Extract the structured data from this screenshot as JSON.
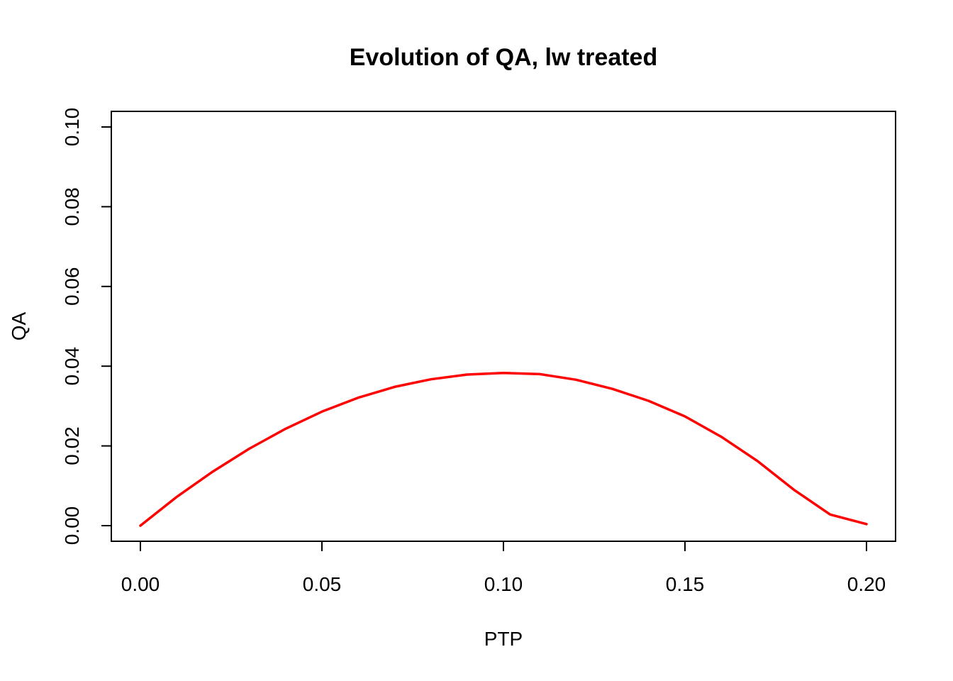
{
  "chart_data": {
    "type": "line",
    "title": "Evolution of QA, lw treated",
    "xlabel": "PTP",
    "ylabel": "QA",
    "xlim": [
      0,
      0.2
    ],
    "ylim": [
      0,
      0.1
    ],
    "x_ticks": [
      "0.00",
      "0.05",
      "0.10",
      "0.15",
      "0.20"
    ],
    "x_tick_values": [
      0,
      0.05,
      0.1,
      0.15,
      0.2
    ],
    "y_ticks": [
      "0.00",
      "0.02",
      "0.04",
      "0.06",
      "0.08",
      "0.10"
    ],
    "y_tick_values": [
      0,
      0.02,
      0.04,
      0.06,
      0.08,
      0.1
    ],
    "grid": false,
    "legend": "none",
    "series": [
      {
        "color": "#ff0000",
        "x": [
          0,
          0.01,
          0.02,
          0.03,
          0.04,
          0.05,
          0.06,
          0.07,
          0.08,
          0.09,
          0.1,
          0.11,
          0.12,
          0.13,
          0.14,
          0.15,
          0.16,
          0.17,
          0.18,
          0.19,
          0.2
        ],
        "y": [
          0.0,
          0.0072,
          0.0136,
          0.0193,
          0.0243,
          0.0286,
          0.0321,
          0.0348,
          0.0367,
          0.0379,
          0.0383,
          0.038,
          0.0366,
          0.0343,
          0.0313,
          0.0274,
          0.0223,
          0.0162,
          0.009,
          0.0028,
          0.0004
        ]
      }
    ]
  }
}
